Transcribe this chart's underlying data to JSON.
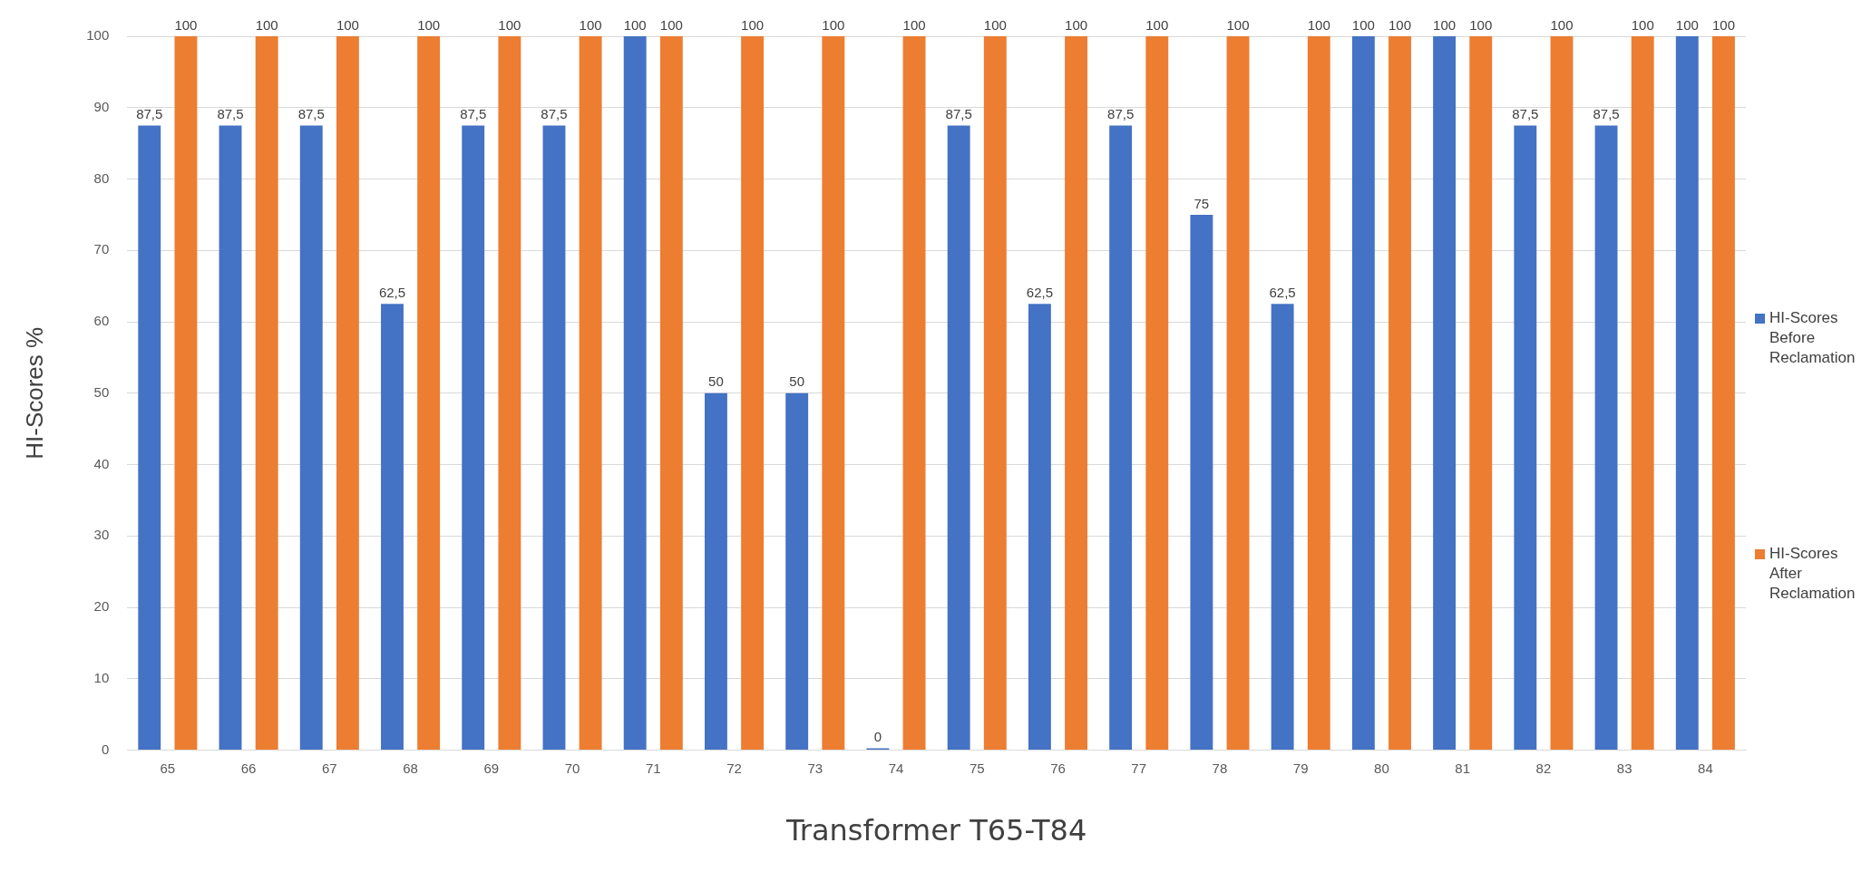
{
  "chart_data": {
    "type": "bar",
    "xlabel": "Transformer T65-T84",
    "ylabel": "HI-Scores %",
    "categories": [
      "65",
      "66",
      "67",
      "68",
      "69",
      "70",
      "71",
      "72",
      "73",
      "74",
      "75",
      "76",
      "77",
      "78",
      "79",
      "80",
      "81",
      "82",
      "83",
      "84"
    ],
    "series": [
      {
        "name": "HI-Scores Before Reclamation",
        "color": "#4472c4",
        "values": [
          87.5,
          87.5,
          87.5,
          62.5,
          87.5,
          87.5,
          100,
          50,
          50,
          0,
          87.5,
          62.5,
          87.5,
          75,
          62.5,
          100,
          100,
          87.5,
          87.5,
          100
        ],
        "value_labels": [
          "87,5",
          "87,5",
          "87,5",
          "62,5",
          "87,5",
          "87,5",
          "100",
          "50",
          "50",
          "0",
          "87,5",
          "62,5",
          "87,5",
          "75",
          "62,5",
          "100",
          "100",
          "87,5",
          "87,5",
          "100"
        ]
      },
      {
        "name": "HI-Scores After Reclamation",
        "color": "#ed7d31",
        "values": [
          100,
          100,
          100,
          100,
          100,
          100,
          100,
          100,
          100,
          100,
          100,
          100,
          100,
          100,
          100,
          100,
          100,
          100,
          100,
          100
        ],
        "value_labels": [
          "100",
          "100",
          "100",
          "100",
          "100",
          "100",
          "100",
          "100",
          "100",
          "100",
          "100",
          "100",
          "100",
          "100",
          "100",
          "100",
          "100",
          "100",
          "100",
          "100"
        ]
      }
    ],
    "ylim": [
      0,
      100
    ],
    "yticks": [
      0,
      10,
      20,
      30,
      40,
      50,
      60,
      70,
      80,
      90,
      100
    ],
    "grid": "y",
    "legend": "right"
  }
}
